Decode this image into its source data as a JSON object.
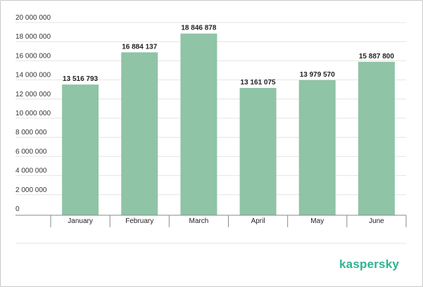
{
  "brand": {
    "name": "kaspersky",
    "color": "#2db38d"
  },
  "chart_data": {
    "type": "bar",
    "categories": [
      "January",
      "February",
      "March",
      "April",
      "May",
      "June"
    ],
    "values": [
      13516793,
      16884137,
      18846878,
      13161075,
      13979570,
      15887800
    ],
    "data_labels": [
      "13 516 793",
      "16 884 137",
      "18 846 878",
      "13 161 075",
      "13 979 570",
      "15 887 800"
    ],
    "ylim": [
      0,
      20000000
    ],
    "yticks": [
      0,
      2000000,
      4000000,
      6000000,
      8000000,
      10000000,
      12000000,
      14000000,
      16000000,
      18000000,
      20000000
    ],
    "ytick_labels": [
      "0",
      "2 000 000",
      "4 000 000",
      "6 000 000",
      "8 000 000",
      "10 000 000",
      "12 000 000",
      "14 000 000",
      "16 000 000",
      "18 000 000",
      "20 000 000"
    ],
    "grid": true,
    "bar_color": "#8fc4a6",
    "grid_color": "#e4e4e4"
  }
}
